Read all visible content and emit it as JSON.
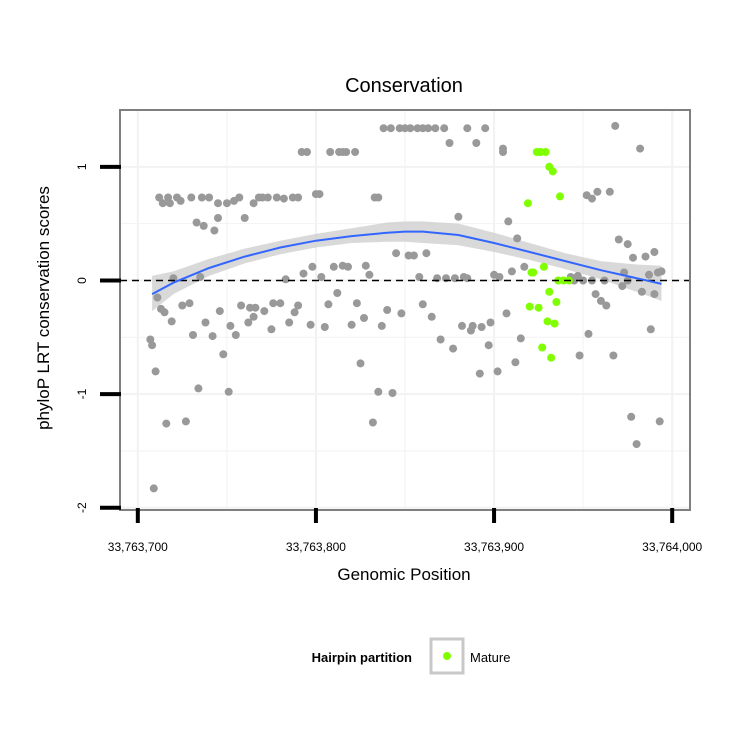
{
  "chart_data": {
    "type": "scatter",
    "title": "Conservation",
    "xlabel": "Genomic Position",
    "ylabel": "phyloP LRT conservation scores",
    "xlim": [
      33763690,
      33764010
    ],
    "ylim": [
      -2.02,
      1.5
    ],
    "x_ticks": [
      33763700,
      33763800,
      33763900,
      33764000
    ],
    "x_tick_labels": [
      "33,763,700",
      "33,763,800",
      "33,763,900",
      "33,764,000"
    ],
    "y_ticks": [
      -2,
      -1,
      0,
      1
    ],
    "y_tick_labels": [
      "-2",
      "-1",
      "0",
      "1"
    ],
    "reference_line": {
      "y": 0,
      "style": "dashed"
    },
    "grid": true,
    "legend": {
      "title": "Hairpin partition",
      "placement": "bottom",
      "entries": [
        {
          "label": "Mature",
          "color": "#7fff00"
        }
      ]
    },
    "colors": {
      "other_points": "#999999",
      "mature_points": "#7fff00",
      "smooth_line": "#3366ff",
      "confidence_band": "#cccccc",
      "panel_border": "#7f7f7f"
    },
    "smooth": {
      "x": [
        33763708,
        33763720,
        33763740,
        33763760,
        33763780,
        33763800,
        33763820,
        33763840,
        33763850,
        33763860,
        33763880,
        33763900,
        33763920,
        33763940,
        33763960,
        33763980,
        33763994
      ],
      "y": [
        -0.12,
        -0.02,
        0.11,
        0.21,
        0.29,
        0.35,
        0.39,
        0.42,
        0.43,
        0.43,
        0.4,
        0.33,
        0.25,
        0.17,
        0.09,
        0.02,
        -0.03
      ],
      "lower": [
        -0.27,
        -0.12,
        0.04,
        0.15,
        0.23,
        0.29,
        0.33,
        0.34,
        0.34,
        0.33,
        0.31,
        0.25,
        0.18,
        0.1,
        0.01,
        -0.1,
        -0.18
      ],
      "upper": [
        0.04,
        0.08,
        0.19,
        0.28,
        0.35,
        0.41,
        0.46,
        0.51,
        0.52,
        0.52,
        0.5,
        0.42,
        0.33,
        0.24,
        0.17,
        0.14,
        0.13
      ]
    },
    "series": [
      {
        "name": "Mature",
        "color": "#7fff00",
        "x": [
          33763919,
          33763920,
          33763922,
          33763924,
          33763926,
          33763927,
          33763929,
          33763931,
          33763933,
          33763935,
          33763937,
          33763925,
          33763928,
          33763930,
          33763932,
          33763934,
          33763936,
          33763939,
          33763942,
          33763921,
          33763926,
          33763931
        ],
        "y": [
          0.68,
          -0.23,
          0.07,
          1.13,
          1.13,
          -0.59,
          1.13,
          1.0,
          0.96,
          -0.19,
          0.74,
          -0.24,
          0.12,
          -0.36,
          -0.68,
          -0.38,
          0.0,
          0.0,
          0.0,
          0.07,
          1.13,
          -0.1
        ]
      },
      {
        "x": [
          33763707,
          33763709,
          33763710,
          33763711,
          33763712,
          33763713,
          33763714,
          33763715,
          33763716,
          33763717,
          33763719,
          33763720,
          33763722,
          33763724,
          33763725,
          33763727,
          33763729,
          33763730,
          33763731,
          33763733,
          33763734,
          33763736,
          33763737,
          33763738,
          33763740,
          33763742,
          33763743,
          33763745,
          33763746,
          33763748,
          33763750,
          33763751,
          33763752,
          33763754,
          33763755,
          33763757,
          33763758,
          33763760,
          33763762,
          33763763,
          33763765,
          33763766,
          33763768,
          33763770,
          33763771,
          33763773,
          33763775,
          33763776,
          33763778,
          33763780,
          33763782,
          33763783,
          33763785,
          33763787,
          33763788,
          33763790,
          33763792,
          33763793,
          33763795,
          33763797,
          33763798,
          33763800,
          33763802,
          33763803,
          33763805,
          33763807,
          33763808,
          33763810,
          33763812,
          33763813,
          33763815,
          33763817,
          33763818,
          33763820,
          33763822,
          33763823,
          33763825,
          33763827,
          33763828,
          33763830,
          33763832,
          33763833,
          33763835,
          33763837,
          33763838,
          33763840,
          33763842,
          33763843,
          33763845,
          33763847,
          33763848,
          33763850,
          33763852,
          33763853,
          33763855,
          33763857,
          33763858,
          33763860,
          33763862,
          33763863,
          33763865,
          33763867,
          33763868,
          33763870,
          33763872,
          33763873,
          33763875,
          33763877,
          33763878,
          33763880,
          33763882,
          33763883,
          33763885,
          33763887,
          33763888,
          33763890,
          33763892,
          33763893,
          33763895,
          33763897,
          33763898,
          33763900,
          33763902,
          33763903,
          33763905,
          33763907,
          33763908,
          33763910,
          33763912,
          33763913,
          33763915,
          33763917,
          33763943,
          33763945,
          33763947,
          33763948,
          33763950,
          33763952,
          33763953,
          33763955,
          33763957,
          33763958,
          33763960,
          33763962,
          33763963,
          33763965,
          33763967,
          33763968,
          33763970,
          33763972,
          33763973,
          33763975,
          33763977,
          33763978,
          33763980,
          33763982,
          33763983,
          33763985,
          33763987,
          33763988,
          33763990,
          33763992,
          33763993,
          33763994,
          33763708,
          33763718,
          33763735,
          33763745,
          33763765,
          33763790,
          33763815,
          33763835,
          33763860,
          33763885,
          33763905,
          33763955,
          33763975,
          33763990
        ],
        "y": [
          -0.52,
          -1.83,
          -0.8,
          -0.15,
          0.73,
          -0.25,
          0.68,
          -0.28,
          -1.26,
          0.73,
          -0.36,
          0.02,
          0.73,
          0.7,
          -0.22,
          -1.24,
          -0.2,
          0.73,
          -0.48,
          0.51,
          -0.95,
          0.73,
          0.48,
          -0.37,
          0.73,
          -0.49,
          0.44,
          0.68,
          -0.27,
          -0.65,
          0.68,
          -0.98,
          -0.4,
          0.7,
          -0.48,
          0.73,
          -0.22,
          0.55,
          -0.37,
          -0.24,
          0.68,
          -0.24,
          0.73,
          0.73,
          -0.27,
          0.73,
          -0.43,
          -0.2,
          0.73,
          -0.2,
          0.72,
          0.01,
          -0.37,
          0.73,
          -0.28,
          -0.22,
          1.13,
          0.06,
          1.13,
          -0.39,
          0.12,
          0.76,
          0.76,
          0.03,
          -0.41,
          -0.21,
          1.13,
          0.12,
          -0.11,
          1.13,
          0.13,
          1.13,
          0.12,
          -0.39,
          1.13,
          -0.2,
          -0.73,
          -0.33,
          0.13,
          0.05,
          -1.25,
          0.73,
          -0.98,
          -0.4,
          1.34,
          -0.26,
          1.34,
          -0.99,
          0.24,
          1.34,
          -0.29,
          1.34,
          0.22,
          1.34,
          0.22,
          1.34,
          0.03,
          1.34,
          0.24,
          1.34,
          -0.32,
          1.34,
          0.02,
          -0.52,
          1.34,
          0.02,
          1.21,
          -0.6,
          0.02,
          0.56,
          -0.4,
          0.03,
          1.34,
          -0.44,
          -0.4,
          1.21,
          -0.82,
          -0.41,
          1.34,
          -0.57,
          -0.37,
          0.05,
          -0.8,
          0.03,
          1.16,
          -0.29,
          0.52,
          0.08,
          -0.72,
          0.37,
          -0.51,
          0.12,
          0.03,
          0.0,
          0.04,
          -0.66,
          0.0,
          0.75,
          -0.47,
          0.0,
          -0.12,
          0.78,
          -0.18,
          0.0,
          -0.22,
          0.78,
          -0.66,
          1.36,
          0.36,
          -0.05,
          0.07,
          0.32,
          -1.2,
          0.2,
          -1.44,
          1.16,
          -0.1,
          0.21,
          0.05,
          -0.43,
          0.25,
          0.07,
          -1.24,
          0.08,
          -0.57,
          0.68,
          0.03,
          0.55,
          -0.32,
          0.73,
          1.13,
          0.73,
          -0.21,
          0.02,
          1.13,
          0.72,
          0.0,
          -0.12
        ]
      }
    ]
  }
}
